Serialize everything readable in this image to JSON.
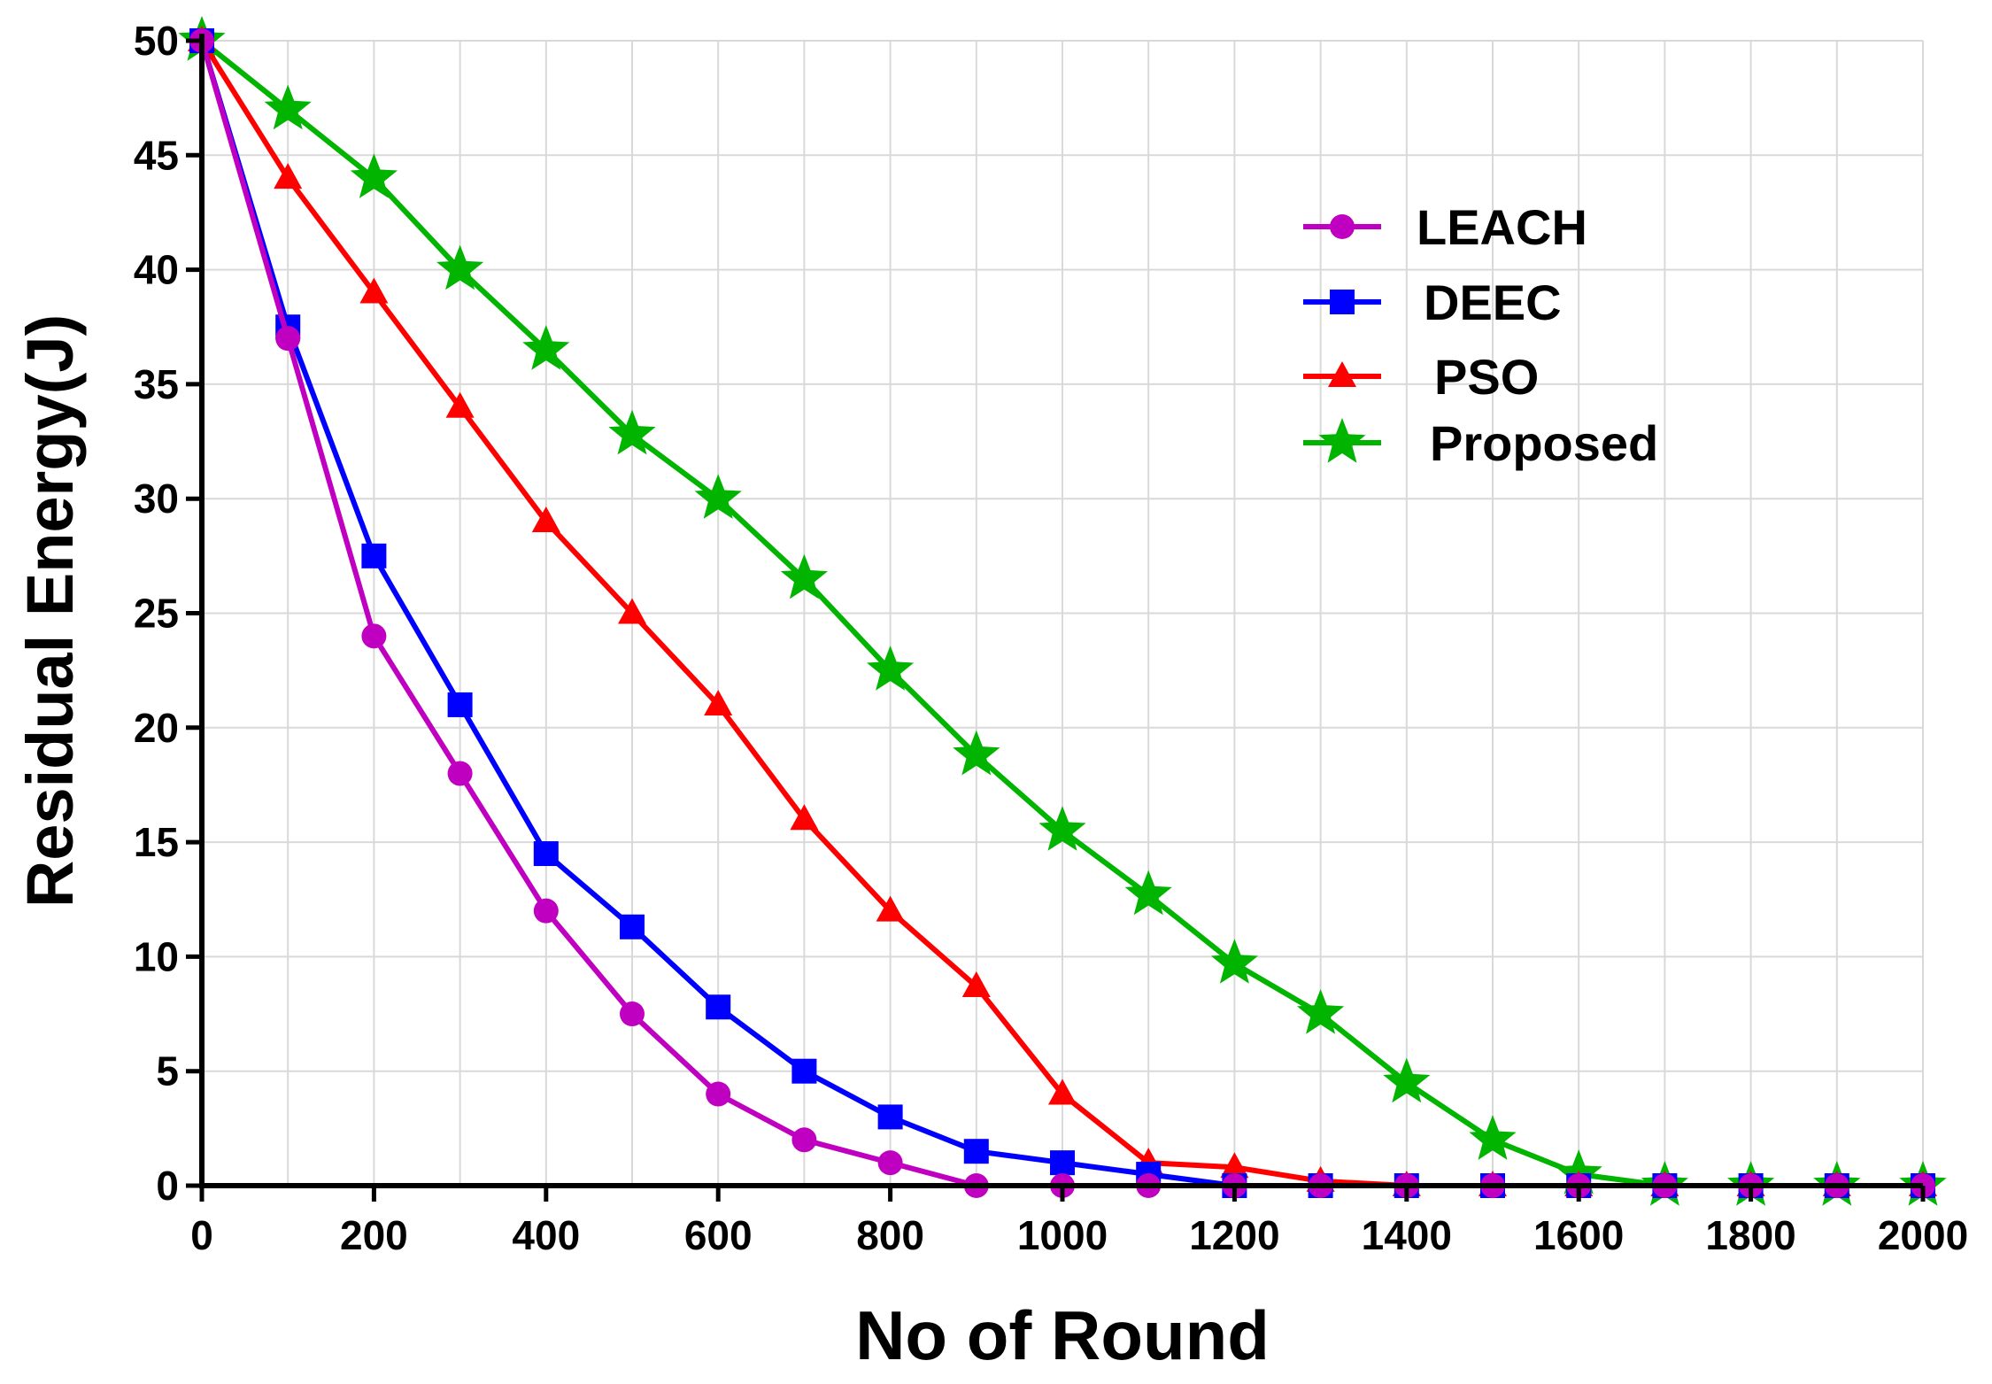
{
  "chart_data": {
    "type": "line",
    "title": "",
    "xlabel": "No of Round",
    "ylabel": "Residual Energy(J)",
    "xlim": [
      0,
      2000
    ],
    "ylim": [
      0,
      50
    ],
    "xticks": [
      0,
      200,
      400,
      600,
      800,
      1000,
      1200,
      1400,
      1600,
      1800,
      2000
    ],
    "yticks": [
      0,
      5,
      10,
      15,
      20,
      25,
      30,
      35,
      40,
      45,
      50
    ],
    "x": [
      0,
      100,
      200,
      300,
      400,
      500,
      600,
      700,
      800,
      900,
      1000,
      1100,
      1200,
      1300,
      1400,
      1500,
      1600,
      1700,
      1800,
      1900,
      2000
    ],
    "grid": true,
    "legend_position": "top-right",
    "series": [
      {
        "name": "LEACH",
        "color": "#c000c0",
        "marker": "circle",
        "values": [
          50,
          37,
          24,
          18,
          12,
          7.5,
          4,
          2,
          1,
          0,
          0,
          0,
          0,
          0,
          0,
          0,
          0,
          0,
          0,
          0,
          0
        ]
      },
      {
        "name": "DEEC",
        "color": "#0000ff",
        "marker": "square",
        "values": [
          50,
          37.5,
          27.5,
          21,
          14.5,
          11.3,
          7.8,
          5,
          3,
          1.5,
          1,
          0.5,
          0,
          0,
          0,
          0,
          0,
          0,
          0,
          0,
          0
        ]
      },
      {
        "name": "PSO",
        "color": "#ff0000",
        "marker": "triangle",
        "values": [
          50,
          44,
          39,
          34,
          29,
          25,
          21,
          16,
          12,
          8.7,
          4,
          1,
          0.8,
          0.2,
          0,
          0,
          0,
          0,
          0,
          0,
          0
        ]
      },
      {
        "name": "Proposed",
        "color": "#00b400",
        "marker": "star",
        "values": [
          50,
          47,
          44,
          40,
          36.5,
          32.8,
          30,
          26.5,
          22.5,
          18.8,
          15.5,
          12.7,
          9.7,
          7.5,
          4.5,
          2,
          0.5,
          0,
          0,
          0,
          0
        ]
      }
    ]
  }
}
